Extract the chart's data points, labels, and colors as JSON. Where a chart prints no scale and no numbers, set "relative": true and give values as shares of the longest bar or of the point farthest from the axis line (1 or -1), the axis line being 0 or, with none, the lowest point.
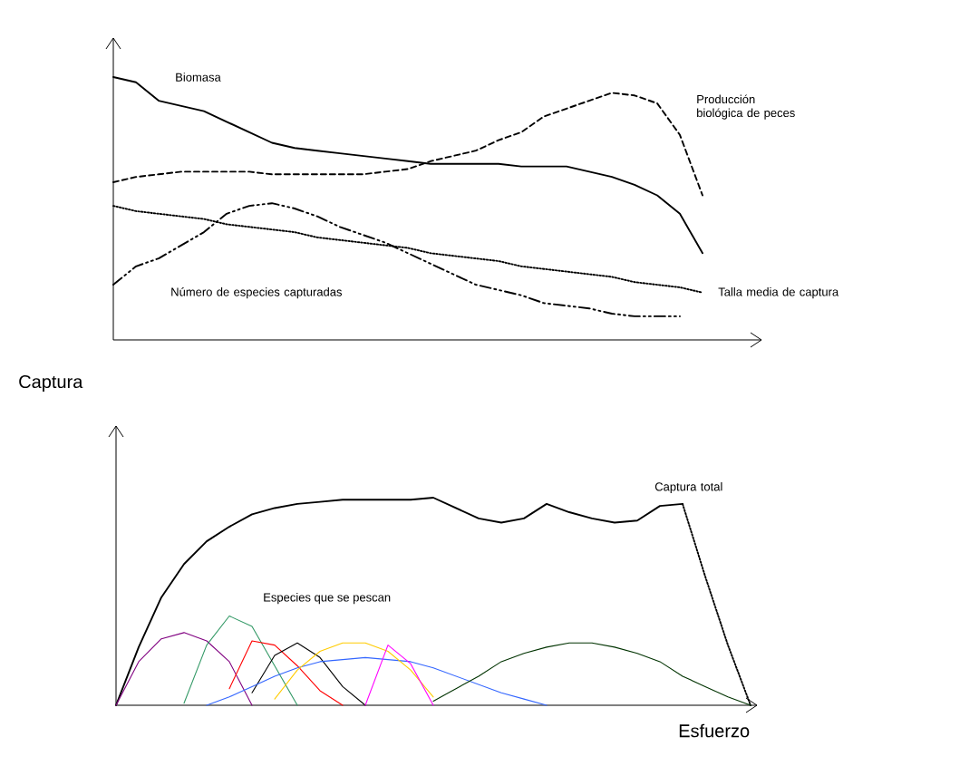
{
  "chart_data": [
    {
      "type": "line",
      "relative": true,
      "legend": false,
      "categories": [
        null,
        null,
        null,
        null,
        null,
        null,
        null,
        null,
        null,
        null,
        null,
        null,
        null,
        null,
        null,
        null,
        null,
        null,
        null,
        null,
        null,
        null,
        null,
        null,
        null,
        null,
        null,
        null
      ],
      "series": [
        {
          "name": "Biomasa",
          "color": "#000000",
          "line_style": "solid",
          "values": [
            1.0,
            0.98,
            0.91,
            0.89,
            0.87,
            0.83,
            0.79,
            0.75,
            0.73,
            0.72,
            0.71,
            0.7,
            0.69,
            0.68,
            0.67,
            0.67,
            0.67,
            0.67,
            0.66,
            0.66,
            0.66,
            0.64,
            0.62,
            0.59,
            0.55,
            0.48,
            0.33,
            null
          ]
        },
        {
          "name": "Producción biológica de peces",
          "color": "#000000",
          "line_style": "dashed",
          "values": [
            0.6,
            0.62,
            0.63,
            0.64,
            0.64,
            0.64,
            0.64,
            0.63,
            0.63,
            0.63,
            0.63,
            0.63,
            0.64,
            0.65,
            0.68,
            0.7,
            0.72,
            0.76,
            0.79,
            0.85,
            0.88,
            0.91,
            0.94,
            0.93,
            0.9,
            0.78,
            0.55,
            null
          ]
        },
        {
          "name": "Talla media de captura",
          "color": "#000000",
          "line_style": "dotted",
          "values": [
            0.51,
            0.49,
            0.48,
            0.47,
            0.46,
            0.44,
            0.43,
            0.42,
            0.41,
            0.39,
            0.38,
            0.37,
            0.36,
            0.35,
            0.33,
            0.32,
            0.31,
            0.3,
            0.28,
            0.27,
            0.26,
            0.25,
            0.24,
            0.22,
            0.21,
            0.2,
            0.18,
            null
          ]
        },
        {
          "name": "Número de especies capturadas",
          "color": "#000000",
          "line_style": "dashdot",
          "values": [
            0.21,
            0.28,
            0.31,
            0.36,
            0.41,
            0.48,
            0.51,
            0.52,
            0.5,
            0.47,
            0.43,
            0.4,
            0.37,
            0.33,
            0.29,
            0.25,
            0.21,
            0.19,
            0.17,
            0.14,
            0.13,
            0.12,
            0.1,
            0.09,
            0.09,
            0.09,
            null,
            null
          ]
        }
      ]
    },
    {
      "type": "line",
      "relative": true,
      "legend": false,
      "xlabel": "Esfuerzo",
      "ylabel": "Captura",
      "annotations": [
        "Especies que se pescan"
      ],
      "categories": [
        null,
        null,
        null,
        null,
        null,
        null,
        null,
        null,
        null,
        null,
        null,
        null,
        null,
        null,
        null,
        null,
        null,
        null,
        null,
        null,
        null,
        null,
        null,
        null,
        null,
        null,
        null,
        null,
        null
      ],
      "series": [
        {
          "name": "Captura total",
          "color": "#000000",
          "line_style": "solid",
          "values": [
            0,
            0.28,
            0.52,
            0.68,
            0.79,
            0.86,
            0.92,
            0.95,
            0.97,
            0.98,
            0.99,
            0.99,
            0.99,
            0.99,
            1.0,
            0.95,
            0.9,
            0.88,
            0.9,
            0.97,
            0.93,
            0.9,
            0.88,
            0.89,
            0.96,
            0.97,
            null,
            null,
            null
          ]
        },
        {
          "color": "#000000",
          "line_style": "dotted",
          "values": [
            null,
            null,
            null,
            null,
            null,
            null,
            null,
            null,
            null,
            null,
            null,
            null,
            null,
            null,
            null,
            null,
            null,
            null,
            null,
            null,
            null,
            null,
            null,
            null,
            null,
            0.97,
            0.62,
            0.29,
            0
          ]
        },
        {
          "color": "#800080",
          "values": [
            0,
            0.21,
            0.32,
            0.35,
            0.31,
            0.21,
            0,
            null,
            null,
            null,
            null,
            null,
            null,
            null,
            null,
            null,
            null,
            null,
            null,
            null,
            null,
            null,
            null,
            null,
            null,
            null,
            null,
            null,
            null
          ]
        },
        {
          "color": "#339966",
          "values": [
            null,
            null,
            null,
            0.01,
            0.29,
            0.43,
            0.38,
            0.19,
            0,
            null,
            null,
            null,
            null,
            null,
            null,
            null,
            null,
            null,
            null,
            null,
            null,
            null,
            null,
            null,
            null,
            null,
            null,
            null,
            null
          ]
        },
        {
          "color": "#ff0000",
          "values": [
            null,
            null,
            null,
            null,
            null,
            0.08,
            0.31,
            0.29,
            0.19,
            0.07,
            0,
            null,
            null,
            null,
            null,
            null,
            null,
            null,
            null,
            null,
            null,
            null,
            null,
            null,
            null,
            null,
            null,
            null,
            null
          ]
        },
        {
          "color": "#000000",
          "values": [
            null,
            null,
            null,
            null,
            null,
            null,
            0.06,
            0.24,
            0.3,
            0.23,
            0.09,
            0,
            null,
            null,
            null,
            null,
            null,
            null,
            null,
            null,
            null,
            null,
            null,
            null,
            null,
            null,
            null,
            null,
            null
          ]
        },
        {
          "color": "#3366ff",
          "values": [
            null,
            null,
            null,
            null,
            0,
            0.04,
            0.09,
            0.14,
            0.18,
            0.21,
            0.22,
            0.23,
            0.22,
            0.21,
            0.18,
            0.14,
            0.1,
            0.06,
            0.03,
            0,
            null,
            null,
            null,
            null,
            null,
            null,
            null,
            null,
            null
          ]
        },
        {
          "color": "#ffcc00",
          "values": [
            null,
            null,
            null,
            null,
            null,
            null,
            null,
            0.03,
            0.17,
            0.26,
            0.3,
            0.3,
            0.26,
            0.17,
            0.04,
            null,
            null,
            null,
            null,
            null,
            null,
            null,
            null,
            null,
            null,
            null,
            null,
            null,
            null
          ]
        },
        {
          "color": "#ff00ff",
          "values": [
            null,
            null,
            null,
            null,
            null,
            null,
            null,
            null,
            null,
            null,
            null,
            0,
            0.29,
            0.2,
            0,
            null,
            null,
            null,
            null,
            null,
            null,
            null,
            null,
            null,
            null,
            null,
            null,
            null,
            null
          ]
        },
        {
          "color": "#003300",
          "values": [
            null,
            null,
            null,
            null,
            null,
            null,
            null,
            null,
            null,
            null,
            null,
            null,
            null,
            null,
            0.02,
            0.08,
            0.14,
            0.21,
            0.25,
            0.28,
            0.3,
            0.3,
            0.28,
            0.25,
            0.21,
            0.14,
            0.09,
            0.04,
            0
          ]
        }
      ]
    }
  ]
}
